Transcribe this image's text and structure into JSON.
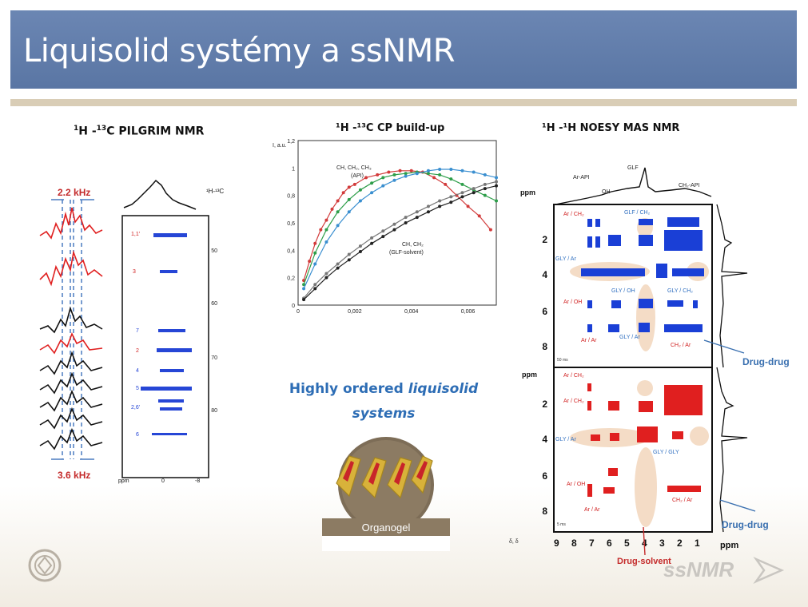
{
  "slide": {
    "title": "Liquisolid systémy a ssNMR"
  },
  "left_panel": {
    "title_sup1": "1",
    "title_mid": "H -",
    "title_sup2": "13",
    "title_end": "C PILGRIM NMR",
    "top_label": "2.2 kHz",
    "bottom_label": "3.6 kHz",
    "corner_label": "¹H-¹³C",
    "axis_label": "ppm",
    "y_ticks": [
      "50",
      "60",
      "70",
      "80"
    ],
    "x_ticks": [
      "0",
      "-8"
    ],
    "peak_labels": [
      "1,1'",
      "3",
      "7",
      "2",
      "4",
      "5",
      "2,6'",
      "6"
    ]
  },
  "middle_chart": {
    "title": "¹H -¹³C CP build-up",
    "group_label_1a": "CH, CH₂, CH₃",
    "group_label_1b": "(API)",
    "group_label_2a": "CH, CH₂",
    "group_label_2b": "(GLF-solvent)",
    "y_axis_label": "I, a.u.",
    "chart_data": {
      "type": "scatter",
      "xlim": [
        0,
        0.007
      ],
      "ylim": [
        0,
        1.2
      ],
      "x_ticks": [
        "0",
        "0,002",
        "0,004",
        "0,006"
      ],
      "y_ticks": [
        "0",
        "0,2",
        "0,4",
        "0,6",
        "0,8",
        "1",
        "1,2"
      ],
      "series": [
        {
          "color": "#d23b3b",
          "x": [
            0.0002,
            0.0004,
            0.0006,
            0.0008,
            0.001,
            0.0012,
            0.0014,
            0.0016,
            0.0018,
            0.002,
            0.0024,
            0.0028,
            0.0032,
            0.0036,
            0.004,
            0.0044,
            0.0048,
            0.0052,
            0.0056,
            0.006,
            0.0064,
            0.0068
          ],
          "y": [
            0.18,
            0.32,
            0.45,
            0.55,
            0.62,
            0.7,
            0.76,
            0.82,
            0.86,
            0.88,
            0.93,
            0.95,
            0.97,
            0.98,
            0.98,
            0.97,
            0.93,
            0.88,
            0.8,
            0.72,
            0.65,
            0.55
          ]
        },
        {
          "color": "#2e9e4a",
          "x": [
            0.0002,
            0.0006,
            0.001,
            0.0014,
            0.0018,
            0.0022,
            0.0026,
            0.003,
            0.0034,
            0.0038,
            0.0042,
            0.0046,
            0.005,
            0.0054,
            0.0058,
            0.0062,
            0.0066,
            0.007
          ],
          "y": [
            0.15,
            0.38,
            0.55,
            0.68,
            0.77,
            0.84,
            0.89,
            0.93,
            0.95,
            0.96,
            0.97,
            0.96,
            0.95,
            0.92,
            0.88,
            0.84,
            0.8,
            0.76
          ]
        },
        {
          "color": "#3a8fd0",
          "x": [
            0.0002,
            0.0006,
            0.001,
            0.0014,
            0.0018,
            0.0022,
            0.0026,
            0.003,
            0.0034,
            0.0038,
            0.0042,
            0.0046,
            0.005,
            0.0054,
            0.0058,
            0.0062,
            0.0066,
            0.007
          ],
          "y": [
            0.12,
            0.3,
            0.46,
            0.58,
            0.68,
            0.76,
            0.82,
            0.87,
            0.91,
            0.94,
            0.96,
            0.98,
            0.99,
            0.99,
            0.98,
            0.97,
            0.95,
            0.93
          ]
        },
        {
          "color": "#777777",
          "x": [
            0.0002,
            0.0006,
            0.001,
            0.0014,
            0.0018,
            0.0022,
            0.0026,
            0.003,
            0.0034,
            0.0038,
            0.0042,
            0.0046,
            0.005,
            0.0054,
            0.0058,
            0.0062,
            0.0066,
            0.007
          ],
          "y": [
            0.05,
            0.15,
            0.23,
            0.3,
            0.37,
            0.43,
            0.49,
            0.54,
            0.59,
            0.64,
            0.68,
            0.72,
            0.76,
            0.79,
            0.82,
            0.85,
            0.88,
            0.9
          ]
        },
        {
          "color": "#222222",
          "x": [
            0.0002,
            0.0006,
            0.001,
            0.0014,
            0.0018,
            0.0022,
            0.0026,
            0.003,
            0.0034,
            0.0038,
            0.0042,
            0.0046,
            0.005,
            0.0054,
            0.0058,
            0.0062,
            0.0066,
            0.007
          ],
          "y": [
            0.04,
            0.12,
            0.2,
            0.27,
            0.33,
            0.39,
            0.45,
            0.5,
            0.55,
            0.6,
            0.64,
            0.68,
            0.72,
            0.75,
            0.79,
            0.82,
            0.85,
            0.87
          ]
        }
      ]
    }
  },
  "center": {
    "line1_a": "Highly ordered ",
    "line1_b": "liquisolid",
    "line2": "systems",
    "organogel_label": "Organogel"
  },
  "right_panel": {
    "title": "¹H -¹H NOESY MAS NMR",
    "ppm_label": "ppm",
    "top_peaks": [
      "Ar-API",
      "OH",
      "GLF",
      "CH₂-API"
    ],
    "y_ticks": [
      "2",
      "4",
      "6",
      "8"
    ],
    "x_ticks": [
      "9",
      "8",
      "7",
      "6",
      "5",
      "4",
      "3",
      "2",
      "1"
    ],
    "upper_labels": [
      "Ar / CH₂",
      "GLF / CH₂",
      "GLY / Ar",
      "GLY / OH",
      "GLY / CH₂",
      "Ar / OH",
      "Ar / Ar",
      "GLY / Ar",
      "CH₂ / Ar"
    ],
    "lower_labels": [
      "Ar / CH₂",
      "Ar / CH₂",
      "GLY / Ar",
      "GLY / GLY",
      "Ar / OH",
      "Ar / Ar",
      "CH₂ / Ar"
    ],
    "mix_upper": "50 ms",
    "mix_lower": "5 ms",
    "corner": "δ, δ",
    "drug_drug_1": "Drug-drug",
    "drug_drug_2": "Drug-drug",
    "drug_solvent": "Drug-solvent"
  },
  "footer": {
    "logo_text": "ssNMR"
  }
}
